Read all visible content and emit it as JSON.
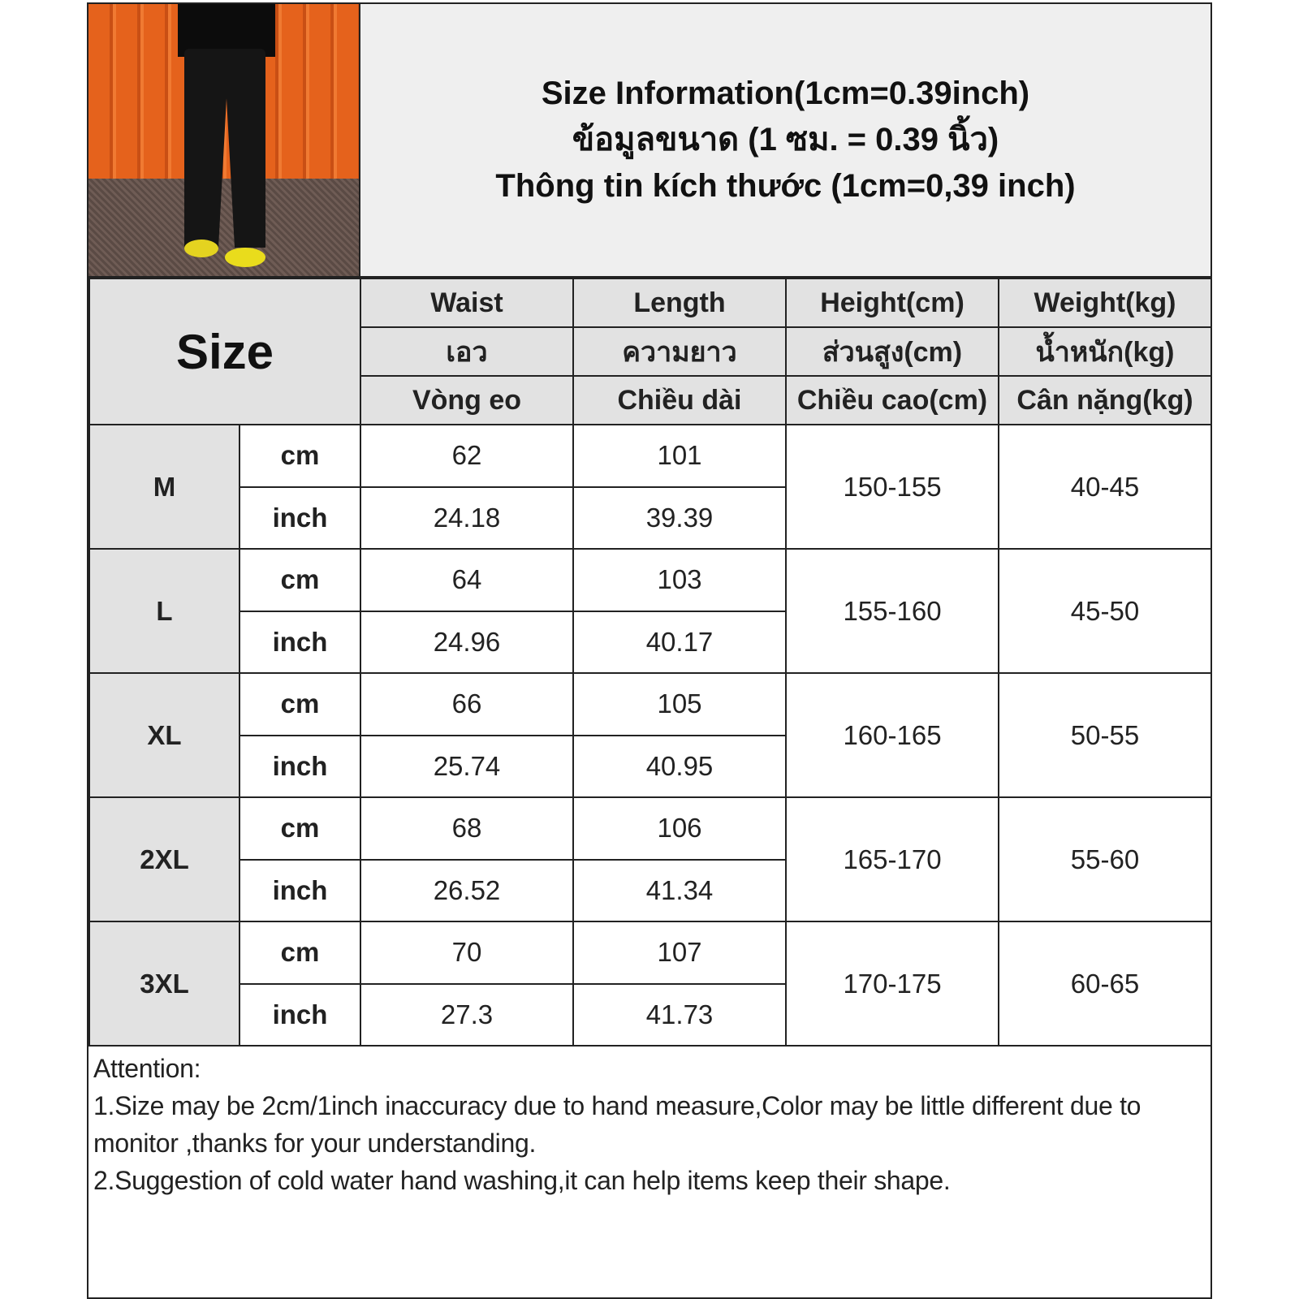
{
  "title": {
    "line1": "Size Information(1cm=0.39inch)",
    "line2": "ข้อมูลขนาด (1 ซม. = 0.39 นิ้ว)",
    "line3": "Thông tin kích thước (1cm=0,39 inch)"
  },
  "header": {
    "size": "Size",
    "columns": [
      {
        "en": "Waist",
        "th": "เอว",
        "vi": "Vòng eo"
      },
      {
        "en": "Length",
        "th": "ความยาว",
        "vi": "Chiều dài"
      },
      {
        "en": "Height(cm)",
        "th": "ส่วนสูง(cm)",
        "vi": "Chiều cao(cm)"
      },
      {
        "en": "Weight(kg)",
        "th": "น้ำหนัก(kg)",
        "vi": "Cân nặng(kg)"
      }
    ]
  },
  "units": {
    "cm": "cm",
    "inch": "inch"
  },
  "rows": [
    {
      "size": "M",
      "waist_cm": "62",
      "length_cm": "101",
      "waist_in": "24.18",
      "length_in": "39.39",
      "height": "150-155",
      "weight": "40-45"
    },
    {
      "size": "L",
      "waist_cm": "64",
      "length_cm": "103",
      "waist_in": "24.96",
      "length_in": "40.17",
      "height": "155-160",
      "weight": "45-50"
    },
    {
      "size": "XL",
      "waist_cm": "66",
      "length_cm": "105",
      "waist_in": "25.74",
      "length_in": "40.95",
      "height": "160-165",
      "weight": "50-55"
    },
    {
      "size": "2XL",
      "waist_cm": "68",
      "length_cm": "106",
      "waist_in": "26.52",
      "length_in": "41.34",
      "height": "165-170",
      "weight": "55-60"
    },
    {
      "size": "3XL",
      "waist_cm": "70",
      "length_cm": "107",
      "waist_in": "27.3",
      "length_in": "41.73",
      "height": "170-175",
      "weight": "60-65"
    }
  ],
  "note": {
    "heading": "Attention:",
    "line1": "1.Size may be 2cm/1inch inaccuracy due to hand measure,Color may be little different due to monitor ,thanks for your understanding.",
    "line2": "2.Suggestion of cold water hand washing,it can help items keep their shape."
  }
}
